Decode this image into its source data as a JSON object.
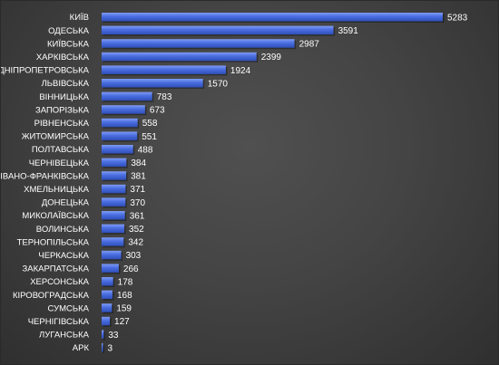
{
  "chart_data": {
    "type": "bar",
    "orientation": "horizontal",
    "categories": [
      "КИЇВ",
      "ОДЕСЬКА",
      "КИЇВСЬКА",
      "ХАРКІВСЬКА",
      "ДНІПРОПЕТРОВСЬКА",
      "ЛЬВІВСЬКА",
      "ВІННИЦЬКА",
      "ЗАПОРІЗЬКА",
      "РІВНЕНСЬКА",
      "ЖИТОМИРСЬКА",
      "ПОЛТАВСЬКА",
      "ЧЕРНІВЕЦЬКА",
      "ІВАНО-ФРАНКІВСЬКА",
      "ХМЕЛЬНИЦЬКА",
      "ДОНЕЦЬКА",
      "МИКОЛАЇВСЬКА",
      "ВОЛИНСЬКА",
      "ТЕРНОПІЛЬСЬКА",
      "ЧЕРКАСЬКА",
      "ЗАКАРПАТСЬКА",
      "ХЕРСОНСЬКА",
      "КІРОВОГРАДСЬКА",
      "СУМСЬКА",
      "ЧЕРНІГІВСЬКА",
      "ЛУГАНСЬКА",
      "АРК"
    ],
    "values": [
      5283,
      3591,
      2987,
      2399,
      1924,
      1570,
      783,
      673,
      558,
      551,
      488,
      384,
      381,
      371,
      370,
      361,
      352,
      342,
      303,
      266,
      178,
      168,
      159,
      127,
      33,
      3
    ],
    "title": "",
    "xlabel": "",
    "ylabel": "",
    "xlim": [
      0,
      5283
    ],
    "grid": false,
    "legend": "none",
    "bar_color": "#3b5fcf",
    "bar_highlight_color": "#6f8ef0",
    "label_color": "#ffffff",
    "background_color": "#444444"
  }
}
